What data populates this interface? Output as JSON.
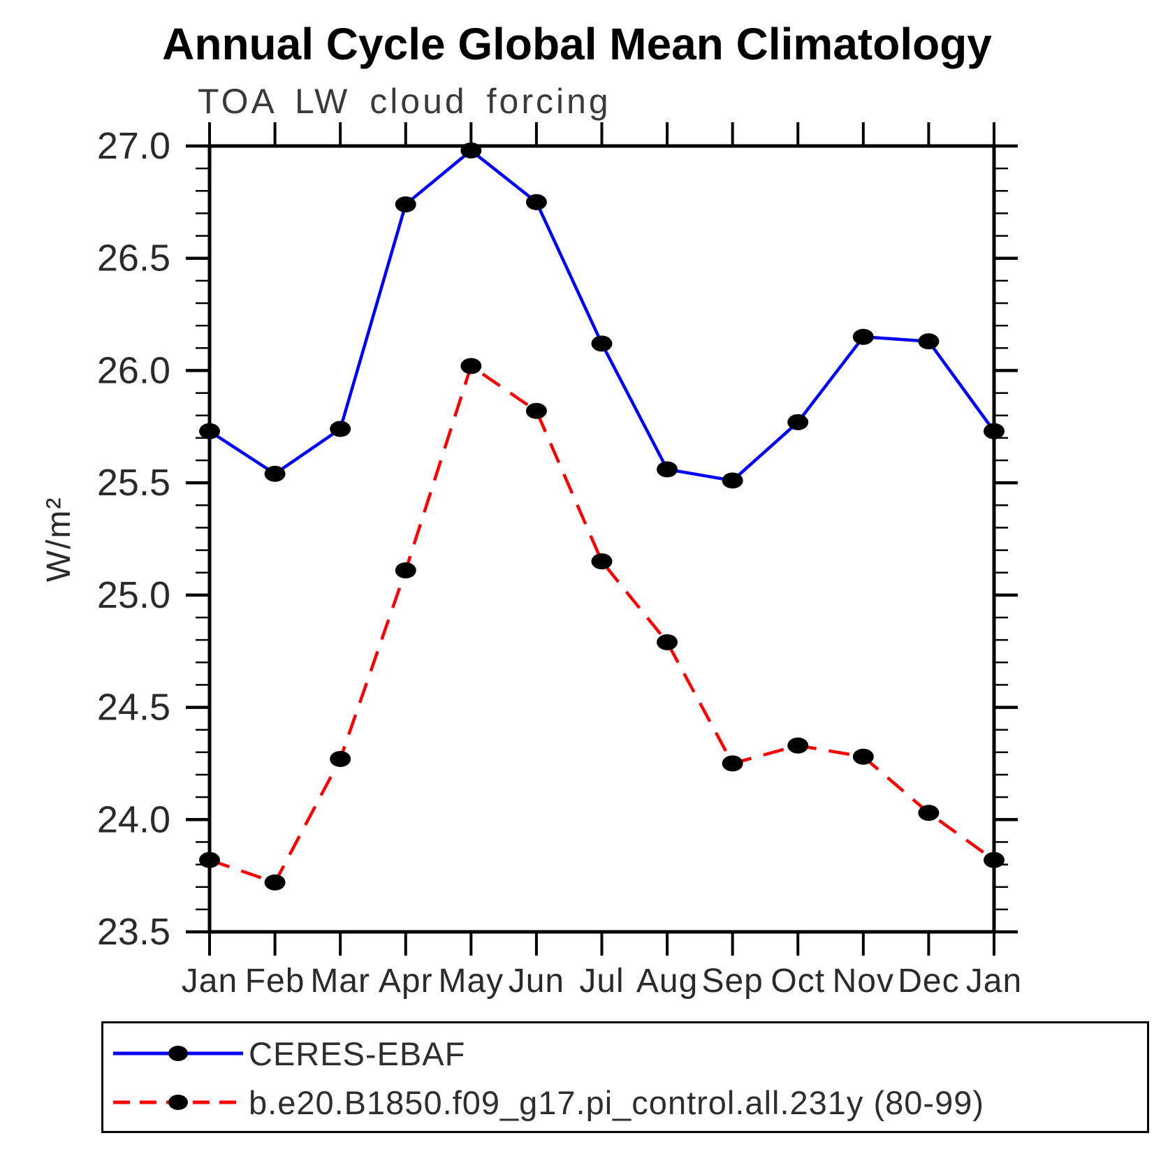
{
  "title": "Annual Cycle Global Mean Climatology",
  "subtitle": "TOA LW cloud forcing",
  "legend": {
    "items": [
      {
        "label": "CERES-EBAF",
        "color": "#0000ff",
        "dash": "solid"
      },
      {
        "label": "b.e20.B1850.f09_g17.pi_control.all.231y (80-99)",
        "color": "#ff0000",
        "dash": "dashed"
      }
    ]
  },
  "chart_data": {
    "type": "line",
    "title": "Annual Cycle Global Mean Climatology",
    "subtitle": "TOA LW cloud forcing",
    "xlabel": "",
    "ylabel": "W/m²",
    "categories": [
      "Jan",
      "Feb",
      "Mar",
      "Apr",
      "May",
      "Jun",
      "Jul",
      "Aug",
      "Sep",
      "Oct",
      "Nov",
      "Dec",
      "Jan"
    ],
    "ylim": [
      23.5,
      27.0
    ],
    "ytick_major": 0.5,
    "ytick_minor": 0.1,
    "ytick_labels": [
      "23.5",
      "24.0",
      "24.5",
      "25.0",
      "25.5",
      "26.0",
      "26.5",
      "27.0"
    ],
    "grid": false,
    "legend_position": "bottom",
    "marker_color": "#000000",
    "axis_color": "#000000",
    "series": [
      {
        "name": "CERES-EBAF",
        "color": "#0000ff",
        "style": "solid",
        "marker": "circle",
        "values": [
          25.73,
          25.54,
          25.74,
          26.74,
          26.98,
          26.75,
          26.12,
          25.56,
          25.51,
          25.77,
          26.15,
          26.13,
          25.73
        ]
      },
      {
        "name": "b.e20.B1850.f09_g17.pi_control.all.231y (80-99)",
        "color": "#ff0000",
        "style": "dashed",
        "marker": "circle",
        "values": [
          23.82,
          23.72,
          24.27,
          25.11,
          26.02,
          25.82,
          25.15,
          24.79,
          24.25,
          24.33,
          24.28,
          24.03,
          23.82
        ]
      }
    ]
  }
}
